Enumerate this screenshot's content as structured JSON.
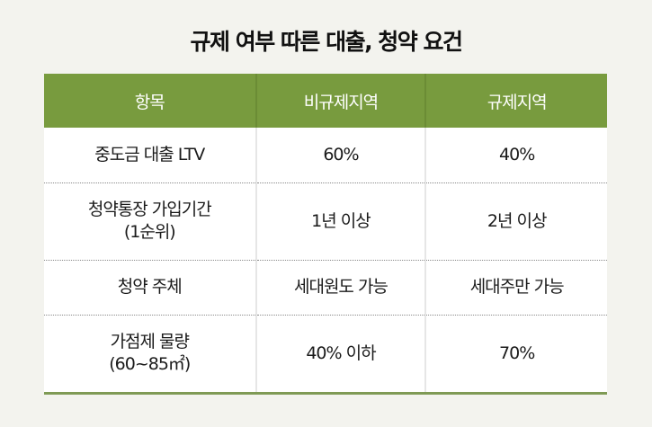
{
  "title": "규제 여부 따른 대출, 청약 요건",
  "colors": {
    "header_bg": "#789b3e",
    "page_bg": "#f3f3ee",
    "bottom_rule": "#7f9a55"
  },
  "table": {
    "headers": [
      "항목",
      "비규제지역",
      "규제지역"
    ],
    "rows": [
      {
        "item_line1": "중도금 대출 LTV",
        "item_line2": "",
        "non_regulated": "60%",
        "regulated": "40%"
      },
      {
        "item_line1": "청약통장 가입기간",
        "item_line2": "(1순위)",
        "non_regulated": "1년 이상",
        "regulated": "2년 이상"
      },
      {
        "item_line1": "청약 주체",
        "item_line2": "",
        "non_regulated": "세대원도 가능",
        "regulated": "세대주만 가능"
      },
      {
        "item_line1": "가점제 물량",
        "item_line2": "(60~85㎡)",
        "non_regulated": "40% 이하",
        "regulated": "70%"
      }
    ]
  }
}
